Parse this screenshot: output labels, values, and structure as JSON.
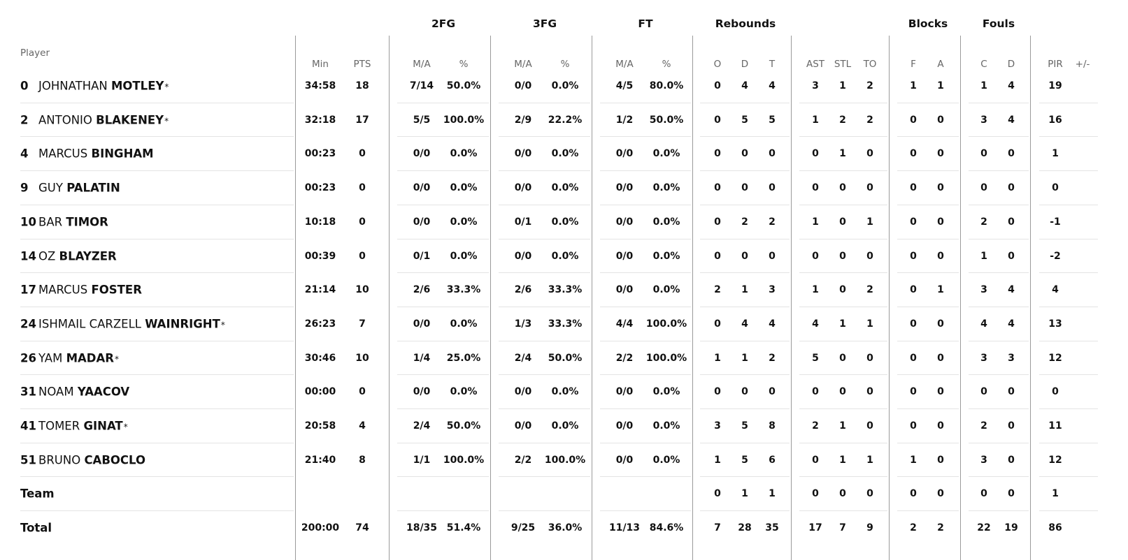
{
  "groups": {
    "fg2": "2FG",
    "fg3": "3FG",
    "ft": "FT",
    "rebounds": "Rebounds",
    "blocks": "Blocks",
    "fouls": "Fouls"
  },
  "player_header": "Player",
  "columns": {
    "min": "Min",
    "pts": "PTS",
    "fg2_ma": "M/A",
    "fg2_pct": "%",
    "fg3_ma": "M/A",
    "fg3_pct": "%",
    "ft_ma": "M/A",
    "ft_pct": "%",
    "reb_o": "O",
    "reb_d": "D",
    "reb_t": "T",
    "ast": "AST",
    "stl": "STL",
    "to": "TO",
    "blk_f": "F",
    "blk_a": "A",
    "foul_c": "C",
    "foul_d": "D",
    "pir": "PIR",
    "pm": "+/-"
  },
  "starter_mark": "*",
  "players": [
    {
      "num": "0",
      "first": "JOHNATHAN",
      "last": "MOTLEY",
      "starter": true,
      "min": "34:58",
      "pts": "18",
      "fg2_ma": "7/14",
      "fg2_pct": "50.0%",
      "fg3_ma": "0/0",
      "fg3_pct": "0.0%",
      "ft_ma": "4/5",
      "ft_pct": "80.0%",
      "reb_o": "0",
      "reb_d": "4",
      "reb_t": "4",
      "ast": "3",
      "stl": "1",
      "to": "2",
      "blk_f": "1",
      "blk_a": "1",
      "foul_c": "1",
      "foul_d": "4",
      "pir": "19"
    },
    {
      "num": "2",
      "first": "ANTONIO",
      "last": "BLAKENEY",
      "starter": true,
      "min": "32:18",
      "pts": "17",
      "fg2_ma": "5/5",
      "fg2_pct": "100.0%",
      "fg3_ma": "2/9",
      "fg3_pct": "22.2%",
      "ft_ma": "1/2",
      "ft_pct": "50.0%",
      "reb_o": "0",
      "reb_d": "5",
      "reb_t": "5",
      "ast": "1",
      "stl": "2",
      "to": "2",
      "blk_f": "0",
      "blk_a": "0",
      "foul_c": "3",
      "foul_d": "4",
      "pir": "16"
    },
    {
      "num": "4",
      "first": "MARCUS",
      "last": "BINGHAM",
      "starter": false,
      "min": "00:23",
      "pts": "0",
      "fg2_ma": "0/0",
      "fg2_pct": "0.0%",
      "fg3_ma": "0/0",
      "fg3_pct": "0.0%",
      "ft_ma": "0/0",
      "ft_pct": "0.0%",
      "reb_o": "0",
      "reb_d": "0",
      "reb_t": "0",
      "ast": "0",
      "stl": "1",
      "to": "0",
      "blk_f": "0",
      "blk_a": "0",
      "foul_c": "0",
      "foul_d": "0",
      "pir": "1"
    },
    {
      "num": "9",
      "first": "GUY",
      "last": "PALATIN",
      "starter": false,
      "min": "00:23",
      "pts": "0",
      "fg2_ma": "0/0",
      "fg2_pct": "0.0%",
      "fg3_ma": "0/0",
      "fg3_pct": "0.0%",
      "ft_ma": "0/0",
      "ft_pct": "0.0%",
      "reb_o": "0",
      "reb_d": "0",
      "reb_t": "0",
      "ast": "0",
      "stl": "0",
      "to": "0",
      "blk_f": "0",
      "blk_a": "0",
      "foul_c": "0",
      "foul_d": "0",
      "pir": "0"
    },
    {
      "num": "10",
      "first": "BAR",
      "last": "TIMOR",
      "starter": false,
      "min": "10:18",
      "pts": "0",
      "fg2_ma": "0/0",
      "fg2_pct": "0.0%",
      "fg3_ma": "0/1",
      "fg3_pct": "0.0%",
      "ft_ma": "0/0",
      "ft_pct": "0.0%",
      "reb_o": "0",
      "reb_d": "2",
      "reb_t": "2",
      "ast": "1",
      "stl": "0",
      "to": "1",
      "blk_f": "0",
      "blk_a": "0",
      "foul_c": "2",
      "foul_d": "0",
      "pir": "-1"
    },
    {
      "num": "14",
      "first": "OZ",
      "last": "BLAYZER",
      "starter": false,
      "min": "00:39",
      "pts": "0",
      "fg2_ma": "0/1",
      "fg2_pct": "0.0%",
      "fg3_ma": "0/0",
      "fg3_pct": "0.0%",
      "ft_ma": "0/0",
      "ft_pct": "0.0%",
      "reb_o": "0",
      "reb_d": "0",
      "reb_t": "0",
      "ast": "0",
      "stl": "0",
      "to": "0",
      "blk_f": "0",
      "blk_a": "0",
      "foul_c": "1",
      "foul_d": "0",
      "pir": "-2"
    },
    {
      "num": "17",
      "first": "MARCUS",
      "last": "FOSTER",
      "starter": false,
      "min": "21:14",
      "pts": "10",
      "fg2_ma": "2/6",
      "fg2_pct": "33.3%",
      "fg3_ma": "2/6",
      "fg3_pct": "33.3%",
      "ft_ma": "0/0",
      "ft_pct": "0.0%",
      "reb_o": "2",
      "reb_d": "1",
      "reb_t": "3",
      "ast": "1",
      "stl": "0",
      "to": "2",
      "blk_f": "0",
      "blk_a": "1",
      "foul_c": "3",
      "foul_d": "4",
      "pir": "4"
    },
    {
      "num": "24",
      "first": "ISHMAIL CARZELL",
      "last": "WAINRIGHT",
      "starter": true,
      "min": "26:23",
      "pts": "7",
      "fg2_ma": "0/0",
      "fg2_pct": "0.0%",
      "fg3_ma": "1/3",
      "fg3_pct": "33.3%",
      "ft_ma": "4/4",
      "ft_pct": "100.0%",
      "reb_o": "0",
      "reb_d": "4",
      "reb_t": "4",
      "ast": "4",
      "stl": "1",
      "to": "1",
      "blk_f": "0",
      "blk_a": "0",
      "foul_c": "4",
      "foul_d": "4",
      "pir": "13"
    },
    {
      "num": "26",
      "first": "YAM",
      "last": "MADAR",
      "starter": true,
      "min": "30:46",
      "pts": "10",
      "fg2_ma": "1/4",
      "fg2_pct": "25.0%",
      "fg3_ma": "2/4",
      "fg3_pct": "50.0%",
      "ft_ma": "2/2",
      "ft_pct": "100.0%",
      "reb_o": "1",
      "reb_d": "1",
      "reb_t": "2",
      "ast": "5",
      "stl": "0",
      "to": "0",
      "blk_f": "0",
      "blk_a": "0",
      "foul_c": "3",
      "foul_d": "3",
      "pir": "12"
    },
    {
      "num": "31",
      "first": "NOAM",
      "last": "YAACOV",
      "starter": false,
      "min": "00:00",
      "pts": "0",
      "fg2_ma": "0/0",
      "fg2_pct": "0.0%",
      "fg3_ma": "0/0",
      "fg3_pct": "0.0%",
      "ft_ma": "0/0",
      "ft_pct": "0.0%",
      "reb_o": "0",
      "reb_d": "0",
      "reb_t": "0",
      "ast": "0",
      "stl": "0",
      "to": "0",
      "blk_f": "0",
      "blk_a": "0",
      "foul_c": "0",
      "foul_d": "0",
      "pir": "0"
    },
    {
      "num": "41",
      "first": "TOMER",
      "last": "GINAT",
      "starter": true,
      "min": "20:58",
      "pts": "4",
      "fg2_ma": "2/4",
      "fg2_pct": "50.0%",
      "fg3_ma": "0/0",
      "fg3_pct": "0.0%",
      "ft_ma": "0/0",
      "ft_pct": "0.0%",
      "reb_o": "3",
      "reb_d": "5",
      "reb_t": "8",
      "ast": "2",
      "stl": "1",
      "to": "0",
      "blk_f": "0",
      "blk_a": "0",
      "foul_c": "2",
      "foul_d": "0",
      "pir": "11"
    },
    {
      "num": "51",
      "first": "BRUNO",
      "last": "CABOCLO",
      "starter": false,
      "min": "21:40",
      "pts": "8",
      "fg2_ma": "1/1",
      "fg2_pct": "100.0%",
      "fg3_ma": "2/2",
      "fg3_pct": "100.0%",
      "ft_ma": "0/0",
      "ft_pct": "0.0%",
      "reb_o": "1",
      "reb_d": "5",
      "reb_t": "6",
      "ast": "0",
      "stl": "1",
      "to": "1",
      "blk_f": "1",
      "blk_a": "0",
      "foul_c": "3",
      "foul_d": "0",
      "pir": "12"
    }
  ],
  "team_row": {
    "label": "Team",
    "reb_o": "0",
    "reb_d": "1",
    "reb_t": "1",
    "ast": "0",
    "stl": "0",
    "to": "0",
    "blk_f": "0",
    "blk_a": "0",
    "foul_c": "0",
    "foul_d": "0",
    "pir": "1"
  },
  "total_row": {
    "label": "Total",
    "min": "200:00",
    "pts": "74",
    "fg2_ma": "18/35",
    "fg2_pct": "51.4%",
    "fg3_ma": "9/25",
    "fg3_pct": "36.0%",
    "ft_ma": "11/13",
    "ft_pct": "84.6%",
    "reb_o": "7",
    "reb_d": "28",
    "reb_t": "35",
    "ast": "17",
    "stl": "7",
    "to": "9",
    "blk_f": "2",
    "blk_a": "2",
    "foul_c": "22",
    "foul_d": "19",
    "pir": "86"
  }
}
